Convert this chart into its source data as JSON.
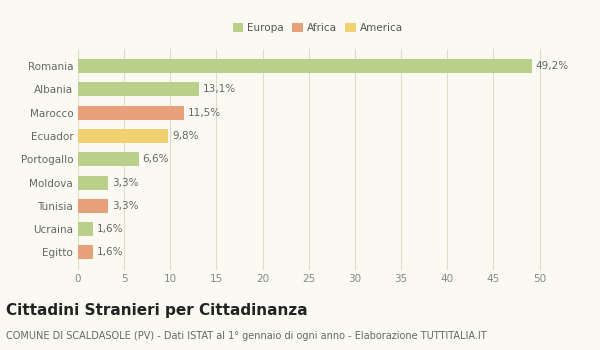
{
  "categories": [
    "Egitto",
    "Ucraina",
    "Tunisia",
    "Moldova",
    "Portogallo",
    "Ecuador",
    "Marocco",
    "Albania",
    "Romania"
  ],
  "values": [
    1.6,
    1.6,
    3.3,
    3.3,
    6.6,
    9.8,
    11.5,
    13.1,
    49.2
  ],
  "labels": [
    "1,6%",
    "1,6%",
    "3,3%",
    "3,3%",
    "6,6%",
    "9,8%",
    "11,5%",
    "13,1%",
    "49,2%"
  ],
  "colors": [
    "#e8a07a",
    "#b8d08a",
    "#e8a07a",
    "#b8d08a",
    "#b8d08a",
    "#f0d070",
    "#e8a07a",
    "#b8d08a",
    "#b8d08a"
  ],
  "legend": [
    {
      "label": "Europa",
      "color": "#b8d08a"
    },
    {
      "label": "Africa",
      "color": "#e8a07a"
    },
    {
      "label": "America",
      "color": "#f0d070"
    }
  ],
  "xlim": [
    0,
    52
  ],
  "xticks": [
    0,
    5,
    10,
    15,
    20,
    25,
    30,
    35,
    40,
    45,
    50
  ],
  "title": "Cittadini Stranieri per Cittadinanza",
  "subtitle": "COMUNE DI SCALDASOLE (PV) - Dati ISTAT al 1° gennaio di ogni anno - Elaborazione TUTTITALIA.IT",
  "bg_color": "#fafaf2",
  "grid_color": "#ddddcc",
  "bar_height": 0.6,
  "label_fontsize": 7.5,
  "tick_fontsize": 7.5,
  "title_fontsize": 11,
  "subtitle_fontsize": 7
}
